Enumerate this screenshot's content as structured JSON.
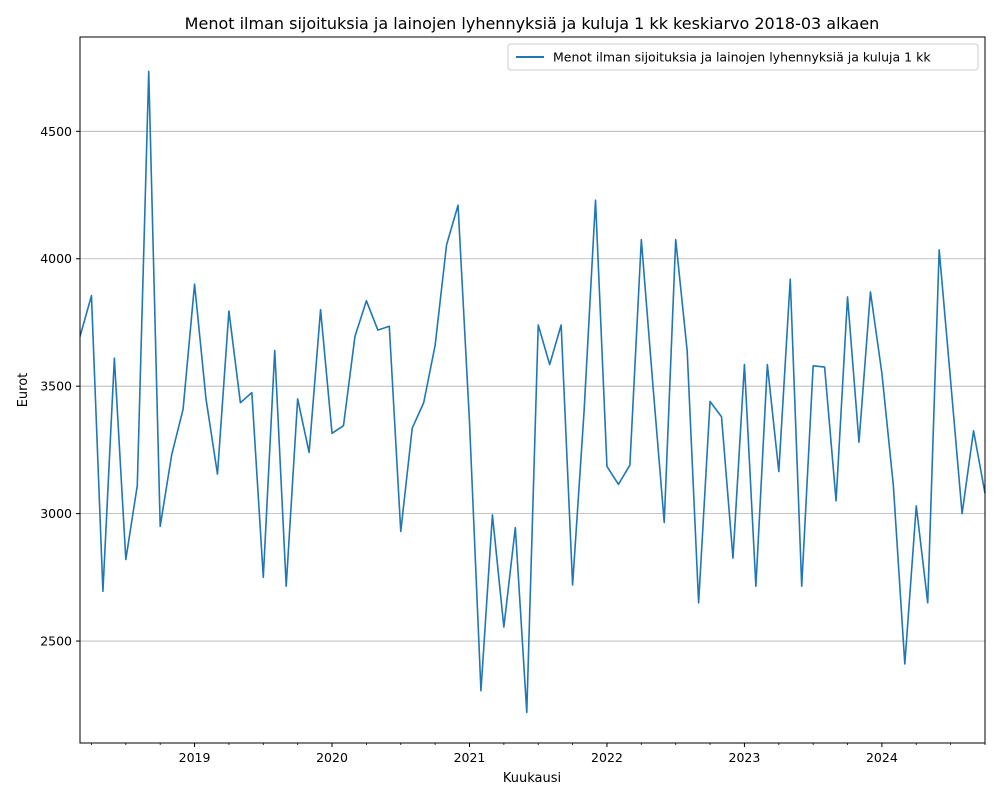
{
  "chart_data": {
    "type": "line",
    "title": "Menot ilman sijoituksia ja lainojen lyhennyksiä ja kuluja 1 kk keskiarvo 2018-03 alkaen",
    "xlabel": "Kuukausi",
    "ylabel": "Eurot",
    "ylim": [
      2100,
      4870
    ],
    "yticks": [
      2500,
      3000,
      3500,
      4000,
      4500
    ],
    "x_start": "2018-03",
    "x_end": "2024-10",
    "xtick_labels": [
      "2019",
      "2020",
      "2021",
      "2022",
      "2023",
      "2024"
    ],
    "grid": "horizontal",
    "legend_position": "top-right",
    "colors": {
      "line": "#1f77b4",
      "grid": "#b0b0b0",
      "axes": "#000000"
    },
    "series": [
      {
        "name": "Menot ilman sijoituksia ja lainojen lyhennyksiä ja kuluja 1 kk",
        "points": [
          [
            "2018-03",
            3695
          ],
          [
            "2018-04",
            3855
          ],
          [
            "2018-05",
            2695
          ],
          [
            "2018-06",
            3610
          ],
          [
            "2018-07",
            2820
          ],
          [
            "2018-08",
            3110
          ],
          [
            "2018-09",
            4735
          ],
          [
            "2018-10",
            2950
          ],
          [
            "2018-11",
            3230
          ],
          [
            "2018-12",
            3410
          ],
          [
            "2019-01",
            3900
          ],
          [
            "2019-02",
            3450
          ],
          [
            "2019-03",
            3155
          ],
          [
            "2019-04",
            3795
          ],
          [
            "2019-05",
            3435
          ],
          [
            "2019-06",
            3475
          ],
          [
            "2019-07",
            2750
          ],
          [
            "2019-08",
            3640
          ],
          [
            "2019-09",
            2715
          ],
          [
            "2019-10",
            3450
          ],
          [
            "2019-11",
            3240
          ],
          [
            "2019-12",
            3800
          ],
          [
            "2020-01",
            3315
          ],
          [
            "2020-02",
            3345
          ],
          [
            "2020-03",
            3695
          ],
          [
            "2020-04",
            3835
          ],
          [
            "2020-05",
            3720
          ],
          [
            "2020-06",
            3735
          ],
          [
            "2020-07",
            2930
          ],
          [
            "2020-08",
            3335
          ],
          [
            "2020-09",
            3435
          ],
          [
            "2020-10",
            3660
          ],
          [
            "2020-11",
            4055
          ],
          [
            "2020-12",
            4210
          ],
          [
            "2021-01",
            3360
          ],
          [
            "2021-02",
            2305
          ],
          [
            "2021-03",
            2995
          ],
          [
            "2021-04",
            2555
          ],
          [
            "2021-05",
            2945
          ],
          [
            "2021-06",
            2220
          ],
          [
            "2021-07",
            3740
          ],
          [
            "2021-08",
            3585
          ],
          [
            "2021-09",
            3740
          ],
          [
            "2021-10",
            2720
          ],
          [
            "2021-11",
            3400
          ],
          [
            "2021-12",
            4230
          ],
          [
            "2022-01",
            3185
          ],
          [
            "2022-02",
            3115
          ],
          [
            "2022-03",
            3190
          ],
          [
            "2022-04",
            4075
          ],
          [
            "2022-05",
            3510
          ],
          [
            "2022-06",
            2965
          ],
          [
            "2022-07",
            4075
          ],
          [
            "2022-08",
            3640
          ],
          [
            "2022-09",
            2650
          ],
          [
            "2022-10",
            3440
          ],
          [
            "2022-11",
            3380
          ],
          [
            "2022-12",
            2825
          ],
          [
            "2023-01",
            3585
          ],
          [
            "2023-02",
            2715
          ],
          [
            "2023-03",
            3585
          ],
          [
            "2023-04",
            3165
          ],
          [
            "2023-05",
            3920
          ],
          [
            "2023-06",
            2715
          ],
          [
            "2023-07",
            3580
          ],
          [
            "2023-08",
            3575
          ],
          [
            "2023-09",
            3050
          ],
          [
            "2023-10",
            3850
          ],
          [
            "2023-11",
            3280
          ],
          [
            "2023-12",
            3870
          ],
          [
            "2024-01",
            3550
          ],
          [
            "2024-02",
            3110
          ],
          [
            "2024-03",
            2410
          ],
          [
            "2024-04",
            3030
          ],
          [
            "2024-05",
            2650
          ],
          [
            "2024-06",
            4035
          ],
          [
            "2024-07",
            3520
          ],
          [
            "2024-08",
            3000
          ],
          [
            "2024-09",
            3325
          ],
          [
            "2024-10",
            3080
          ]
        ]
      }
    ]
  }
}
